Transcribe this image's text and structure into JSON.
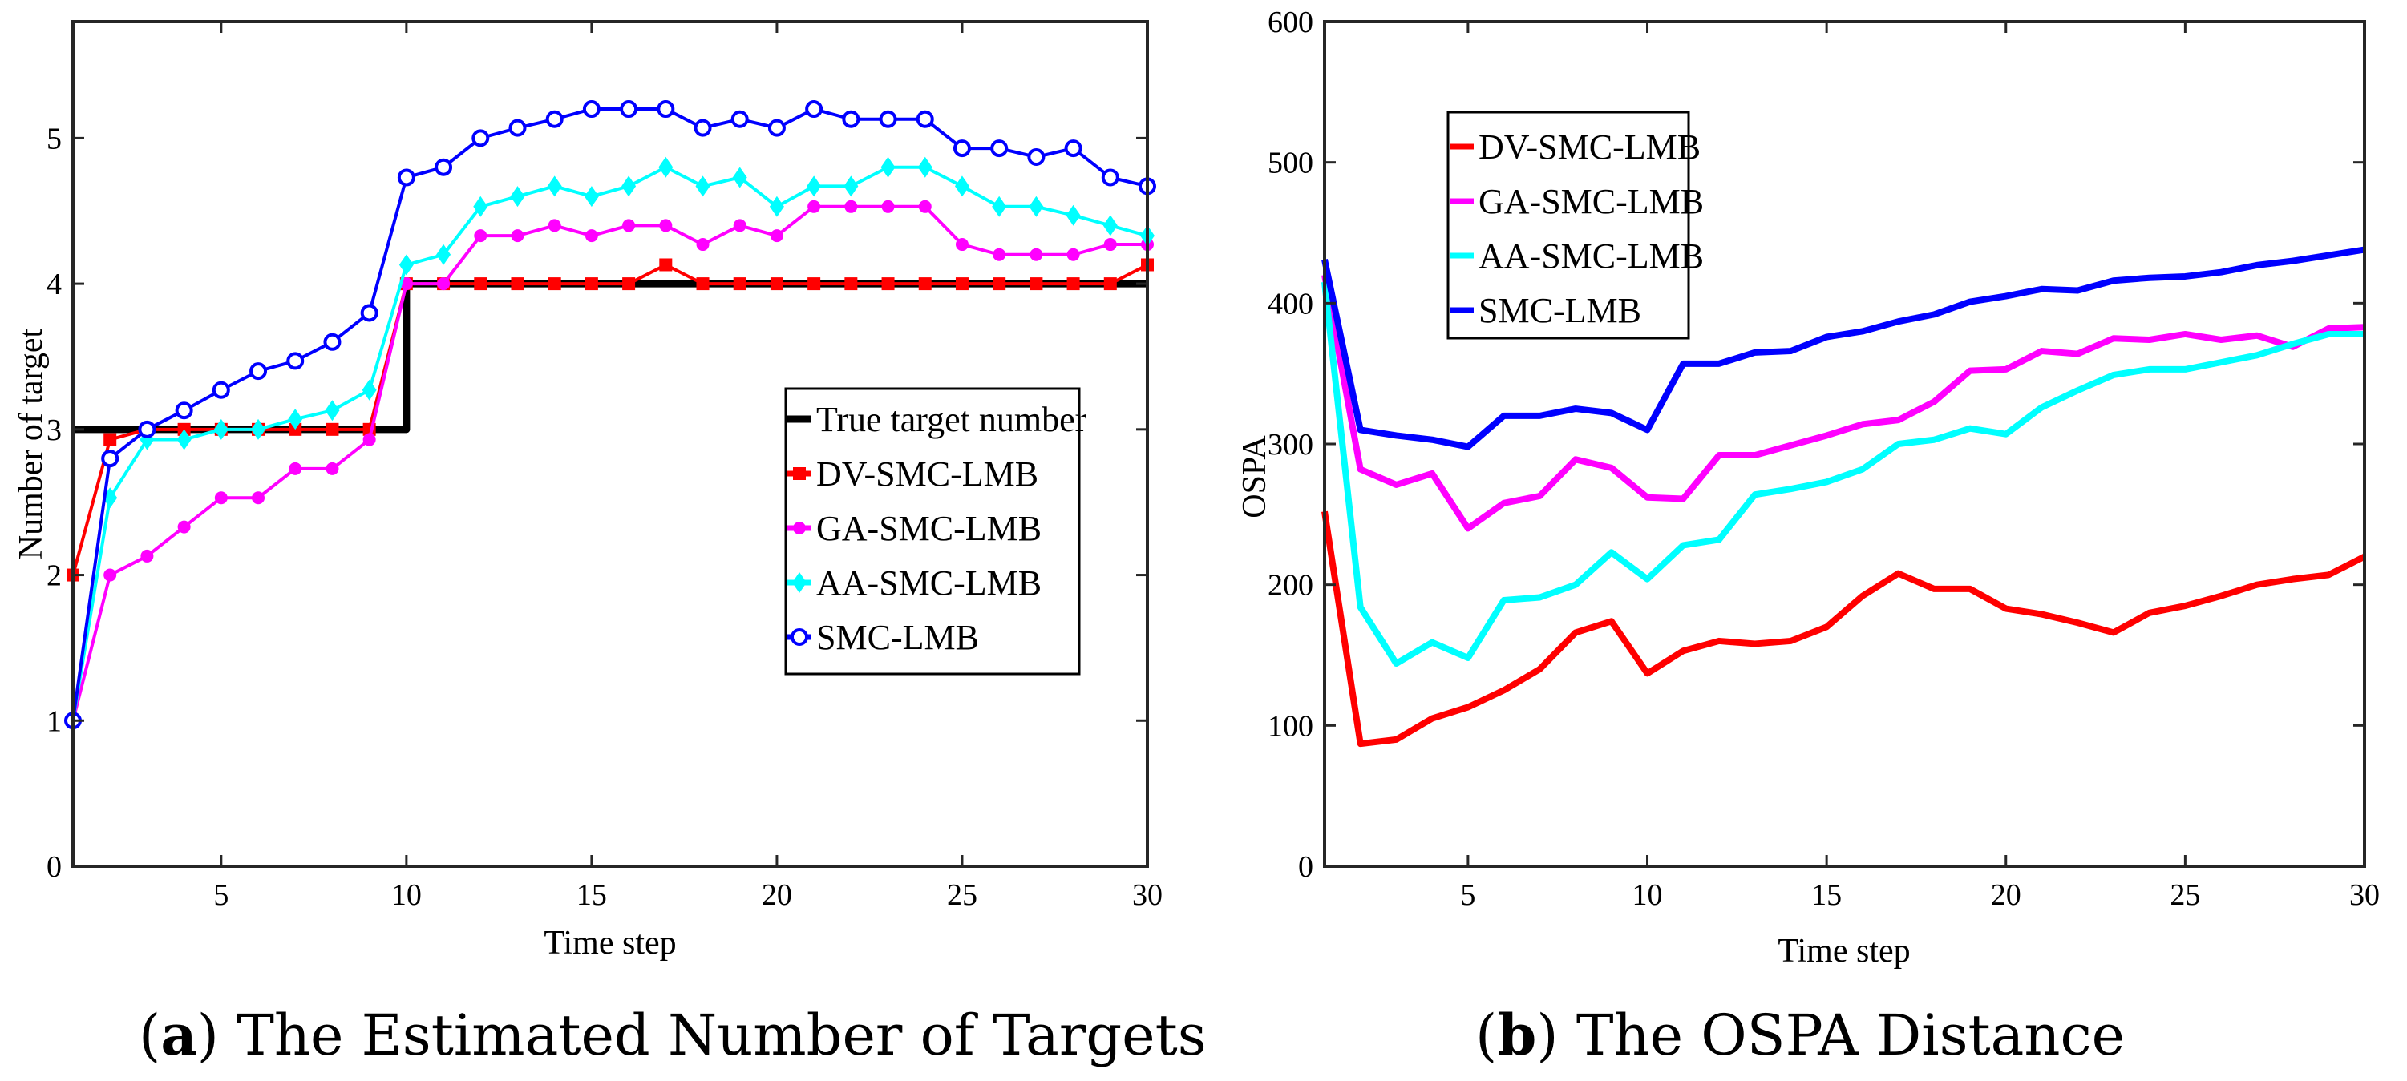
{
  "captions": [
    {
      "prefix": "(",
      "letter": "a",
      "suffix": ") The Estimated Number of Targets"
    },
    {
      "prefix": "(",
      "letter": "b",
      "suffix": ") The OSPA Distance"
    }
  ],
  "chart_data": [
    {
      "type": "line",
      "title": "",
      "xlabel": "Time step",
      "ylabel": "Number of target",
      "xlim": [
        1,
        30
      ],
      "ylim": [
        0,
        5.8
      ],
      "xticks": [
        5,
        10,
        15,
        20,
        25,
        30
      ],
      "yticks": [
        0,
        1,
        2,
        3,
        4,
        5
      ],
      "legend_position": "center-right",
      "x": [
        1,
        2,
        3,
        4,
        5,
        6,
        7,
        8,
        9,
        10,
        11,
        12,
        13,
        14,
        15,
        16,
        17,
        18,
        19,
        20,
        21,
        22,
        23,
        24,
        25,
        26,
        27,
        28,
        29,
        30
      ],
      "series": [
        {
          "name": "True target number",
          "color": "#000000",
          "marker": "none",
          "step": true,
          "values": [
            3,
            3,
            3,
            3,
            3,
            3,
            3,
            3,
            3,
            4,
            4,
            4,
            4,
            4,
            4,
            4,
            4,
            4,
            4,
            4,
            4,
            4,
            4,
            4,
            4,
            4,
            4,
            4,
            4,
            4
          ]
        },
        {
          "name": "DV-SMC-LMB",
          "color": "#ff0000",
          "marker": "square",
          "values": [
            2,
            2.93,
            3,
            3,
            3,
            3,
            3,
            3,
            3,
            4,
            4,
            4,
            4,
            4,
            4,
            4,
            4.13,
            4,
            4,
            4,
            4,
            4,
            4,
            4,
            4,
            4,
            4,
            4,
            4,
            4.13
          ]
        },
        {
          "name": "GA-SMC-LMB",
          "color": "#ff00ff",
          "marker": "dot",
          "values": [
            1,
            2,
            2.13,
            2.33,
            2.53,
            2.53,
            2.73,
            2.73,
            2.93,
            4,
            4,
            4.33,
            4.33,
            4.4,
            4.33,
            4.4,
            4.4,
            4.27,
            4.4,
            4.33,
            4.53,
            4.53,
            4.53,
            4.53,
            4.27,
            4.2,
            4.2,
            4.2,
            4.27,
            4.27
          ]
        },
        {
          "name": "AA-SMC-LMB",
          "color": "#00ffff",
          "marker": "diamond",
          "values": [
            1,
            2.53,
            2.93,
            2.93,
            3,
            3,
            3.07,
            3.13,
            3.27,
            4.13,
            4.2,
            4.53,
            4.6,
            4.67,
            4.6,
            4.67,
            4.8,
            4.67,
            4.73,
            4.53,
            4.67,
            4.67,
            4.8,
            4.8,
            4.67,
            4.53,
            4.53,
            4.47,
            4.4,
            4.33
          ]
        },
        {
          "name": "SMC-LMB",
          "color": "#0000ff",
          "marker": "circle",
          "values": [
            1,
            2.8,
            3,
            3.13,
            3.27,
            3.4,
            3.47,
            3.6,
            3.8,
            4.73,
            4.8,
            5,
            5.07,
            5.13,
            5.2,
            5.2,
            5.2,
            5.07,
            5.13,
            5.07,
            5.2,
            5.13,
            5.13,
            5.13,
            4.93,
            4.93,
            4.87,
            4.93,
            4.73,
            4.67
          ]
        }
      ]
    },
    {
      "type": "line",
      "title": "",
      "xlabel": "Time step",
      "ylabel": "OSPA",
      "xlim": [
        1,
        30
      ],
      "ylim": [
        0,
        600
      ],
      "xticks": [
        5,
        10,
        15,
        20,
        25,
        30
      ],
      "yticks": [
        0,
        100,
        200,
        300,
        400,
        500,
        600
      ],
      "legend_position": "top-left",
      "x": [
        1,
        2,
        3,
        4,
        5,
        6,
        7,
        8,
        9,
        10,
        11,
        12,
        13,
        14,
        15,
        16,
        17,
        18,
        19,
        20,
        21,
        22,
        23,
        24,
        25,
        26,
        27,
        28,
        29,
        30
      ],
      "series": [
        {
          "name": "DV-SMC-LMB",
          "color": "#ff0000",
          "values": [
            252,
            87,
            90,
            105,
            113,
            125,
            140,
            166,
            174,
            137,
            153,
            160,
            158,
            160,
            170,
            192,
            208,
            197,
            197,
            183,
            179,
            173,
            166,
            180,
            185,
            192,
            200,
            204,
            207,
            220
          ]
        },
        {
          "name": "GA-SMC-LMB",
          "color": "#ff00ff",
          "values": [
            420,
            282,
            271,
            279,
            240,
            258,
            263,
            289,
            283,
            262,
            261,
            292,
            292,
            299,
            306,
            314,
            317,
            330,
            352,
            353,
            366,
            364,
            375,
            374,
            378,
            374,
            377,
            369,
            382,
            383
          ]
        },
        {
          "name": "AA-SMC-LMB",
          "color": "#00ffff",
          "values": [
            415,
            184,
            144,
            159,
            148,
            189,
            191,
            200,
            223,
            204,
            228,
            232,
            264,
            268,
            273,
            282,
            300,
            303,
            311,
            307,
            326,
            338,
            349,
            353,
            353,
            358,
            363,
            371,
            378,
            378
          ]
        },
        {
          "name": "SMC-LMB",
          "color": "#0000ff",
          "values": [
            431,
            310,
            306,
            303,
            298,
            320,
            320,
            325,
            322,
            310,
            357,
            357,
            365,
            366,
            376,
            380,
            387,
            392,
            401,
            405,
            410,
            409,
            416,
            418,
            419,
            422,
            427,
            430,
            434,
            438
          ]
        }
      ]
    }
  ]
}
